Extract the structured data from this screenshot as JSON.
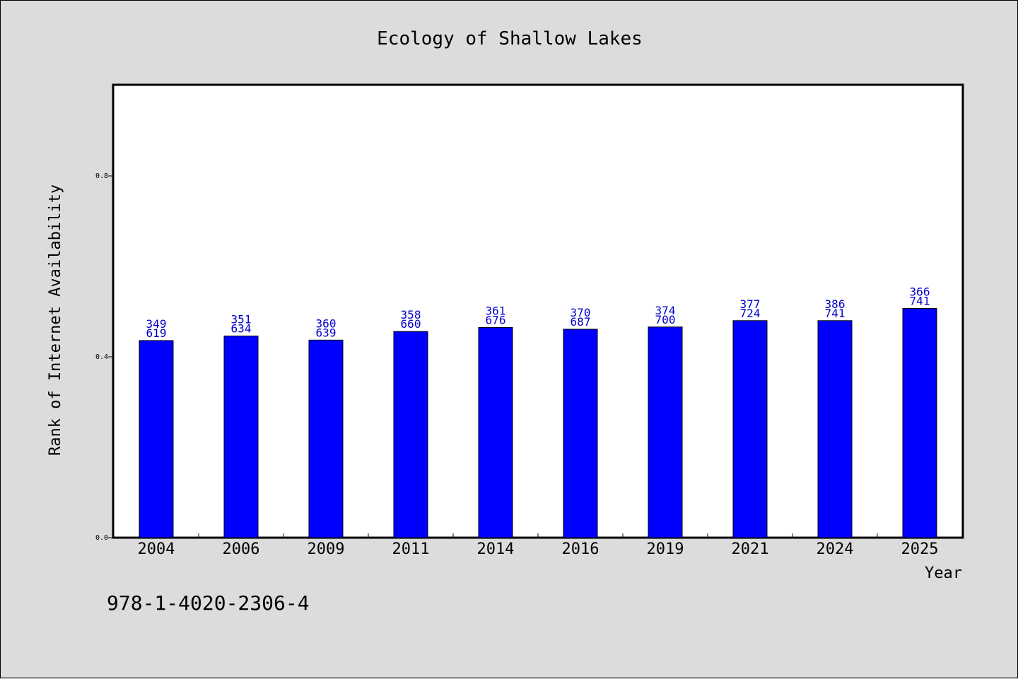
{
  "chart_data": {
    "type": "bar",
    "title": "Ecology of Shallow Lakes",
    "xlabel": "Year",
    "ylabel": "Rank of Internet Availability",
    "footer_text": "978-1-4020-2306-4",
    "ylim": [
      0,
      1.0
    ],
    "yticks": [
      0.0,
      0.4,
      0.8
    ],
    "ytick_labels": [
      "0.0",
      "0.4",
      "0.8"
    ],
    "grid": false,
    "legend": "none",
    "categories": [
      "2004",
      "2006",
      "2009",
      "2011",
      "2014",
      "2016",
      "2019",
      "2021",
      "2024",
      "2025"
    ],
    "values": [
      0.436,
      0.446,
      0.437,
      0.456,
      0.465,
      0.461,
      0.466,
      0.48,
      0.48,
      0.507
    ],
    "label_top": [
      "349",
      "351",
      "360",
      "358",
      "361",
      "370",
      "374",
      "377",
      "386",
      "366"
    ],
    "label_bottom": [
      "619",
      "634",
      "639",
      "660",
      "676",
      "687",
      "700",
      "724",
      "741",
      "741"
    ],
    "colors": {
      "bar": "#0000ff",
      "label": "#0000cc",
      "background": "#dcdcdc",
      "plot_background": "#ffffff"
    }
  }
}
